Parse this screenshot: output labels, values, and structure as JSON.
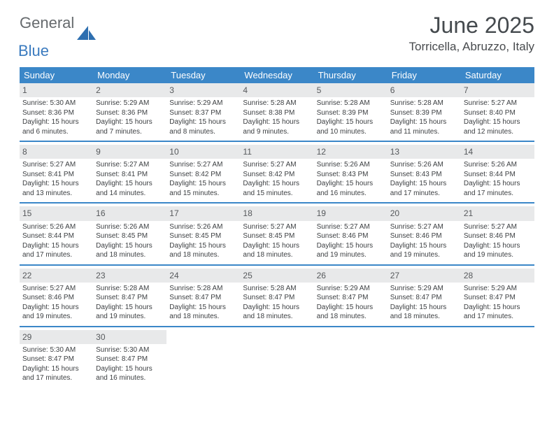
{
  "logo": {
    "text1": "General",
    "text2": "Blue"
  },
  "header": {
    "month": "June 2025",
    "location": "Torricella, Abruzzo, Italy"
  },
  "colors": {
    "accent": "#3b87c8",
    "daynum_bg": "#e8e9ea",
    "text": "#3c3f42",
    "header_text": "#454a4e"
  },
  "day_headers": [
    "Sunday",
    "Monday",
    "Tuesday",
    "Wednesday",
    "Thursday",
    "Friday",
    "Saturday"
  ],
  "weeks": [
    [
      {
        "n": "1",
        "sr": "Sunrise: 5:30 AM",
        "ss": "Sunset: 8:36 PM",
        "dl": "Daylight: 15 hours and 6 minutes."
      },
      {
        "n": "2",
        "sr": "Sunrise: 5:29 AM",
        "ss": "Sunset: 8:36 PM",
        "dl": "Daylight: 15 hours and 7 minutes."
      },
      {
        "n": "3",
        "sr": "Sunrise: 5:29 AM",
        "ss": "Sunset: 8:37 PM",
        "dl": "Daylight: 15 hours and 8 minutes."
      },
      {
        "n": "4",
        "sr": "Sunrise: 5:28 AM",
        "ss": "Sunset: 8:38 PM",
        "dl": "Daylight: 15 hours and 9 minutes."
      },
      {
        "n": "5",
        "sr": "Sunrise: 5:28 AM",
        "ss": "Sunset: 8:39 PM",
        "dl": "Daylight: 15 hours and 10 minutes."
      },
      {
        "n": "6",
        "sr": "Sunrise: 5:28 AM",
        "ss": "Sunset: 8:39 PM",
        "dl": "Daylight: 15 hours and 11 minutes."
      },
      {
        "n": "7",
        "sr": "Sunrise: 5:27 AM",
        "ss": "Sunset: 8:40 PM",
        "dl": "Daylight: 15 hours and 12 minutes."
      }
    ],
    [
      {
        "n": "8",
        "sr": "Sunrise: 5:27 AM",
        "ss": "Sunset: 8:41 PM",
        "dl": "Daylight: 15 hours and 13 minutes."
      },
      {
        "n": "9",
        "sr": "Sunrise: 5:27 AM",
        "ss": "Sunset: 8:41 PM",
        "dl": "Daylight: 15 hours and 14 minutes."
      },
      {
        "n": "10",
        "sr": "Sunrise: 5:27 AM",
        "ss": "Sunset: 8:42 PM",
        "dl": "Daylight: 15 hours and 15 minutes."
      },
      {
        "n": "11",
        "sr": "Sunrise: 5:27 AM",
        "ss": "Sunset: 8:42 PM",
        "dl": "Daylight: 15 hours and 15 minutes."
      },
      {
        "n": "12",
        "sr": "Sunrise: 5:26 AM",
        "ss": "Sunset: 8:43 PM",
        "dl": "Daylight: 15 hours and 16 minutes."
      },
      {
        "n": "13",
        "sr": "Sunrise: 5:26 AM",
        "ss": "Sunset: 8:43 PM",
        "dl": "Daylight: 15 hours and 17 minutes."
      },
      {
        "n": "14",
        "sr": "Sunrise: 5:26 AM",
        "ss": "Sunset: 8:44 PM",
        "dl": "Daylight: 15 hours and 17 minutes."
      }
    ],
    [
      {
        "n": "15",
        "sr": "Sunrise: 5:26 AM",
        "ss": "Sunset: 8:44 PM",
        "dl": "Daylight: 15 hours and 17 minutes."
      },
      {
        "n": "16",
        "sr": "Sunrise: 5:26 AM",
        "ss": "Sunset: 8:45 PM",
        "dl": "Daylight: 15 hours and 18 minutes."
      },
      {
        "n": "17",
        "sr": "Sunrise: 5:26 AM",
        "ss": "Sunset: 8:45 PM",
        "dl": "Daylight: 15 hours and 18 minutes."
      },
      {
        "n": "18",
        "sr": "Sunrise: 5:27 AM",
        "ss": "Sunset: 8:45 PM",
        "dl": "Daylight: 15 hours and 18 minutes."
      },
      {
        "n": "19",
        "sr": "Sunrise: 5:27 AM",
        "ss": "Sunset: 8:46 PM",
        "dl": "Daylight: 15 hours and 19 minutes."
      },
      {
        "n": "20",
        "sr": "Sunrise: 5:27 AM",
        "ss": "Sunset: 8:46 PM",
        "dl": "Daylight: 15 hours and 19 minutes."
      },
      {
        "n": "21",
        "sr": "Sunrise: 5:27 AM",
        "ss": "Sunset: 8:46 PM",
        "dl": "Daylight: 15 hours and 19 minutes."
      }
    ],
    [
      {
        "n": "22",
        "sr": "Sunrise: 5:27 AM",
        "ss": "Sunset: 8:46 PM",
        "dl": "Daylight: 15 hours and 19 minutes."
      },
      {
        "n": "23",
        "sr": "Sunrise: 5:28 AM",
        "ss": "Sunset: 8:47 PM",
        "dl": "Daylight: 15 hours and 19 minutes."
      },
      {
        "n": "24",
        "sr": "Sunrise: 5:28 AM",
        "ss": "Sunset: 8:47 PM",
        "dl": "Daylight: 15 hours and 18 minutes."
      },
      {
        "n": "25",
        "sr": "Sunrise: 5:28 AM",
        "ss": "Sunset: 8:47 PM",
        "dl": "Daylight: 15 hours and 18 minutes."
      },
      {
        "n": "26",
        "sr": "Sunrise: 5:29 AM",
        "ss": "Sunset: 8:47 PM",
        "dl": "Daylight: 15 hours and 18 minutes."
      },
      {
        "n": "27",
        "sr": "Sunrise: 5:29 AM",
        "ss": "Sunset: 8:47 PM",
        "dl": "Daylight: 15 hours and 18 minutes."
      },
      {
        "n": "28",
        "sr": "Sunrise: 5:29 AM",
        "ss": "Sunset: 8:47 PM",
        "dl": "Daylight: 15 hours and 17 minutes."
      }
    ],
    [
      {
        "n": "29",
        "sr": "Sunrise: 5:30 AM",
        "ss": "Sunset: 8:47 PM",
        "dl": "Daylight: 15 hours and 17 minutes."
      },
      {
        "n": "30",
        "sr": "Sunrise: 5:30 AM",
        "ss": "Sunset: 8:47 PM",
        "dl": "Daylight: 15 hours and 16 minutes."
      },
      null,
      null,
      null,
      null,
      null
    ]
  ]
}
